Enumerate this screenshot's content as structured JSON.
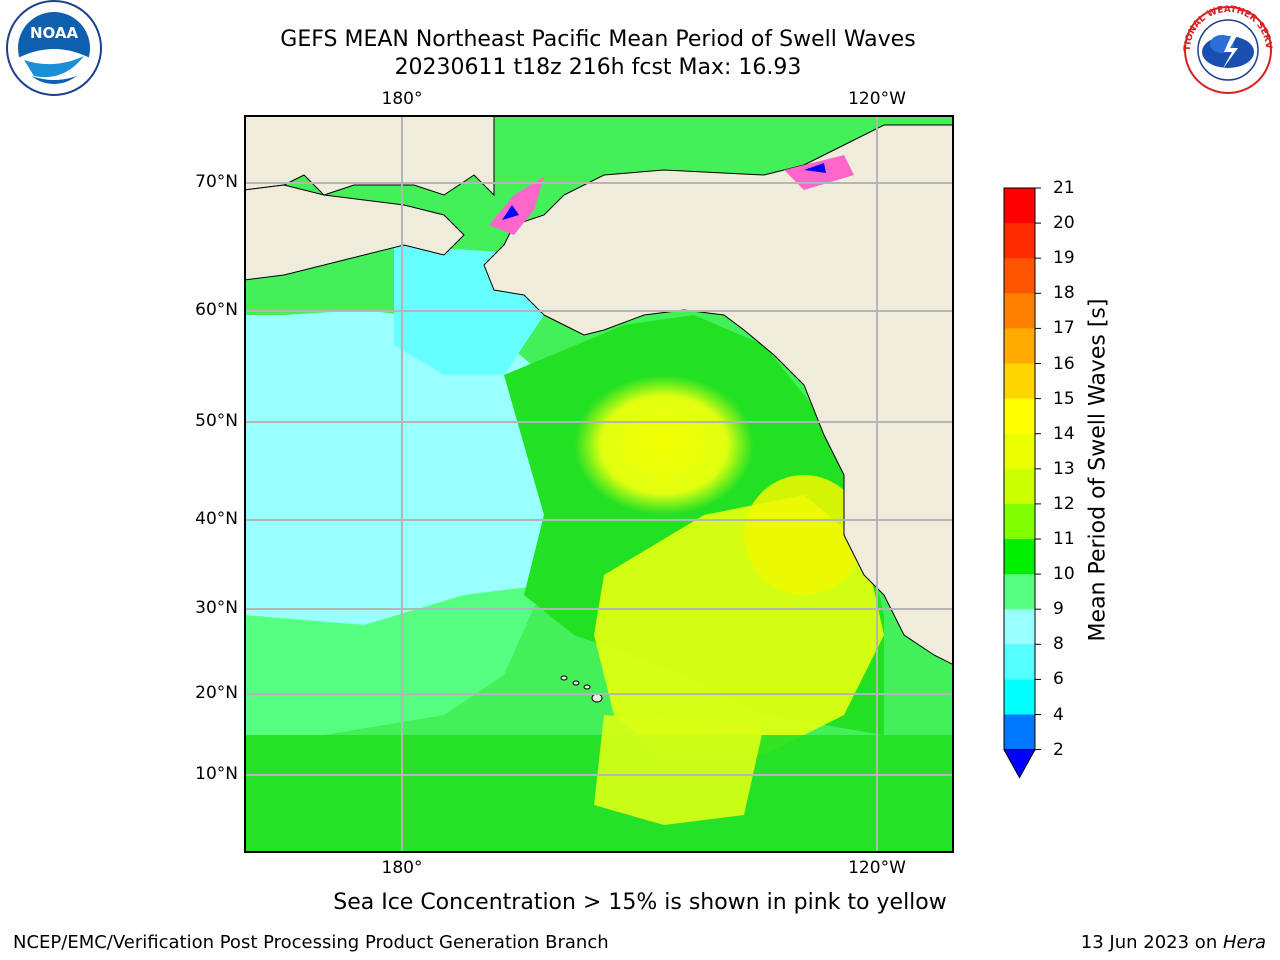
{
  "title_line1": "GEFS MEAN Northeast Pacific Mean Period of Swell Waves",
  "title_line2": "20230611 t18z 216h fcst   Max: 16.93",
  "map": {
    "top_lon_labels": [
      "180°",
      "120°W"
    ],
    "bottom_lon_labels": [
      "180°",
      "120°W"
    ],
    "lat_labels": [
      "70°N",
      "60°N",
      "50°N",
      "40°N",
      "30°N",
      "20°N",
      "10°N"
    ],
    "colors": {
      "land": "#efecdc",
      "coast": "#000000",
      "grid": "#b5b5b5",
      "ice_pink": "#ff66cc",
      "ice_blue": "#0000ff"
    }
  },
  "colorbar": {
    "title": "Mean Period of Swell Waves [s]",
    "tick_labels": [
      "21",
      "20",
      "19",
      "18",
      "17",
      "16",
      "15",
      "14",
      "13",
      "12",
      "11",
      "10",
      "9",
      "8",
      "6",
      "4",
      "2"
    ],
    "colors_top_to_bottom": [
      "#ff0000",
      "#ff2a00",
      "#ff5500",
      "#ff8000",
      "#ffaa00",
      "#ffd500",
      "#ffff00",
      "#eaff00",
      "#ccff00",
      "#80ff00",
      "#00ee00",
      "#55ff7f",
      "#99ffff",
      "#55ffff",
      "#00ffff",
      "#0077ff"
    ],
    "extend_color": "#0000ff"
  },
  "note": "Sea Ice Concentration > 15% is shown in pink to yellow",
  "footer_left": "NCEP/EMC/Verification Post Processing Product Generation Branch",
  "footer_right_date": "13 Jun 2023 on ",
  "footer_right_host": "Hera",
  "logos": {
    "left": "noaa-logo",
    "right": "national-weather-service-logo",
    "left_text": "NOAA",
    "right_ring_text": "NATIONAL WEATHER SERVICE"
  }
}
